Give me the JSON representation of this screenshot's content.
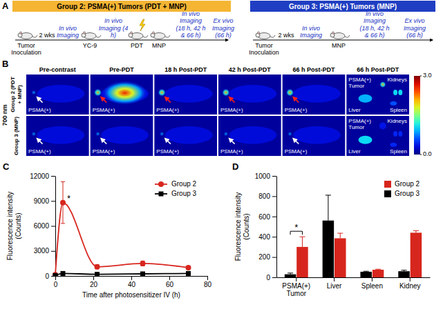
{
  "panel_a": {
    "letter": "A",
    "groups": [
      {
        "title": "Group 2: PSMA(+) Tumors (PDT + MNP)",
        "color": "#f5b533",
        "steps": [
          {
            "label": "Tumor Inoculation",
            "kind": "mouse"
          },
          {
            "label": "2 wks",
            "kind": "interval"
          },
          {
            "label": "In vivo Imaging",
            "kind": "imaging"
          },
          {
            "label": "YC-9",
            "kind": "mouse"
          },
          {
            "label": "In vivo Imaging (4 h)",
            "kind": "imaging"
          },
          {
            "label": "PDT",
            "kind": "laser"
          },
          {
            "label": "MNP",
            "kind": "mouse"
          },
          {
            "label": "In vivo Imaging (18 h, 42 h & 66 h)",
            "kind": "imaging"
          },
          {
            "label": "Ex vivo Imaging (66 h)",
            "kind": "imaging"
          }
        ]
      },
      {
        "title": "Group 3: PSMA(+) Tumors (MNP)",
        "color": "#1f3ec2",
        "steps": [
          {
            "label": "Tumor Inoculation",
            "kind": "mouse"
          },
          {
            "label": "2 wks",
            "kind": "interval"
          },
          {
            "label": "In vivo Imaging",
            "kind": "imaging"
          },
          {
            "label": "MNP",
            "kind": "mouse"
          },
          {
            "label": "In vivo Imaging (18 h, 42 h & 66 h)",
            "kind": "imaging"
          },
          {
            "label": "Ex vivo Imaging (66 h)",
            "kind": "imaging"
          }
        ]
      }
    ]
  },
  "panel_b": {
    "letter": "B",
    "channel": "700 nm",
    "columns": [
      "Pre-contrast",
      "Pre-PDT",
      "18 h Post-PDT",
      "42 h Post-PDT",
      "66 h Post-PDT",
      "66 h Post-PDT"
    ],
    "rows": [
      {
        "label": "Group 2 (PDT + MNP)",
        "tumor_label": "PSMA(+)",
        "organs": [
          "PSMA(+) Tumor",
          "Kidneys",
          "Liver",
          "Spleen"
        ]
      },
      {
        "label": "Group 3 (MNP)",
        "tumor_label": "PSMA(+)",
        "organs": [
          "PSMA(+) Tumor",
          "Kidneys",
          "Liver",
          "Spleen"
        ]
      }
    ],
    "colorbar": {
      "range": [
        0,
        3
      ],
      "ticks": [
        {
          "value": 3,
          "label": "3.0"
        },
        {
          "value": 0,
          "label": "0.0"
        }
      ]
    }
  },
  "chart_data": [
    {
      "type": "line",
      "panel_label": "C",
      "x_label": "Time after photosensitizer IV (h)",
      "y_label": "Fluorescence intensity (Counts)",
      "x": [
        0,
        4,
        22,
        46,
        70
      ],
      "series": [
        {
          "name": "Group 2",
          "color": "#d7261e",
          "marker": "circle",
          "values": [
            150,
            8800,
            1100,
            1500,
            1000
          ],
          "errors": [
            50,
            2500,
            250,
            300,
            200
          ]
        },
        {
          "name": "Group 3",
          "color": "#000000",
          "marker": "square",
          "values": [
            60,
            300,
            200,
            250,
            300
          ],
          "errors": [
            20,
            80,
            60,
            60,
            80
          ]
        }
      ],
      "xlim": [
        0,
        80
      ],
      "xticks": [
        0,
        20,
        40,
        60,
        80
      ],
      "ylim": [
        0,
        12000
      ],
      "yticks": [
        0,
        3000,
        6000,
        9000,
        12000
      ],
      "legend": "upper right",
      "annotations": [
        "*"
      ]
    },
    {
      "type": "bar",
      "panel_label": "D",
      "y_label": "Fluorescence intensity (Counts)",
      "categories": [
        "PSMA(+) Tumor",
        "Liver",
        "Spleen",
        "Kidney"
      ],
      "series": [
        {
          "name": "Group 3",
          "color": "#000000",
          "values": [
            30,
            560,
            55,
            60
          ],
          "errors": [
            12,
            250,
            5,
            10
          ]
        },
        {
          "name": "Group 2",
          "color": "#d7261e",
          "values": [
            300,
            385,
            75,
            440
          ],
          "errors": [
            100,
            50,
            5,
            20
          ]
        }
      ],
      "ylim": [
        0,
        1000
      ],
      "yticks": [
        0,
        200,
        400,
        600,
        800,
        1000
      ],
      "legend": "upper right",
      "annotations": [
        "*"
      ]
    }
  ]
}
